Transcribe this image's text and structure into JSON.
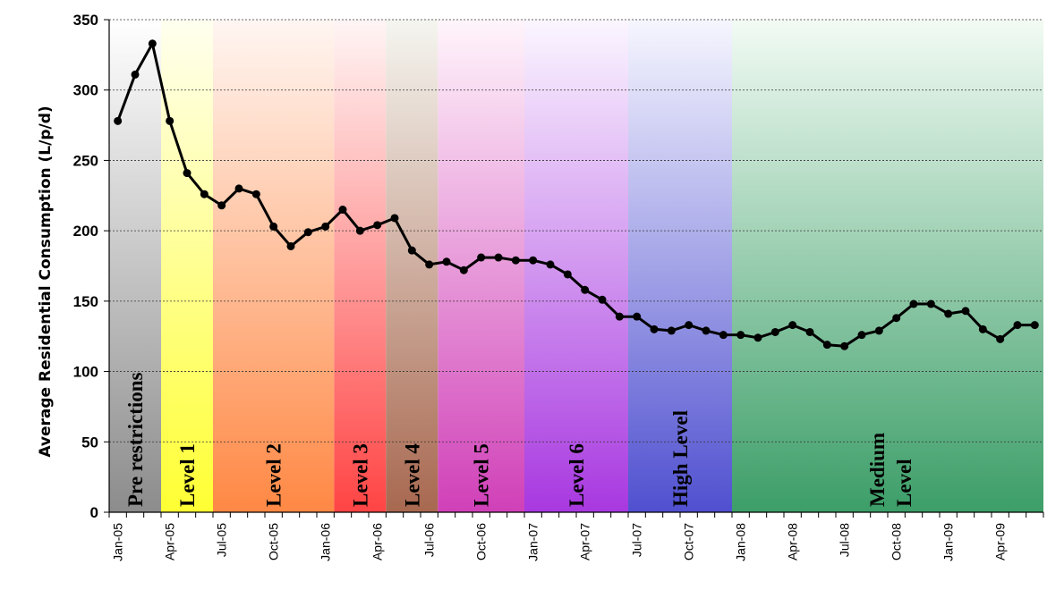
{
  "chart_data": {
    "type": "line",
    "xlabel": "",
    "ylabel": "Average Residential Consumption (L/p/d)",
    "ylim": [
      0,
      350
    ],
    "yticks": [
      0,
      50,
      100,
      150,
      200,
      250,
      300,
      350
    ],
    "grid": true,
    "x_tick_labels": [
      "Jan-05",
      "Apr-05",
      "Jul-05",
      "Oct-05",
      "Jan-06",
      "Apr-06",
      "Jul-06",
      "Oct-06",
      "Jan-07",
      "Apr-07",
      "Jul-07",
      "Oct-07",
      "Jan-08",
      "Apr-08",
      "Jul-08",
      "Oct-08",
      "Jan-09",
      "Apr-09"
    ],
    "months": [
      "Jan-05",
      "Feb-05",
      "Mar-05",
      "Apr-05",
      "May-05",
      "Jun-05",
      "Jul-05",
      "Aug-05",
      "Sep-05",
      "Oct-05",
      "Nov-05",
      "Dec-05",
      "Jan-06",
      "Feb-06",
      "Mar-06",
      "Apr-06",
      "May-06",
      "Jun-06",
      "Jul-06",
      "Aug-06",
      "Sep-06",
      "Oct-06",
      "Nov-06",
      "Dec-06",
      "Jan-07",
      "Feb-07",
      "Mar-07",
      "Apr-07",
      "May-07",
      "Jun-07",
      "Jul-07",
      "Aug-07",
      "Sep-07",
      "Oct-07",
      "Nov-07",
      "Dec-07",
      "Jan-08",
      "Feb-08",
      "Mar-08",
      "Apr-08",
      "May-08",
      "Jun-08",
      "Jul-08",
      "Aug-08",
      "Sep-08",
      "Oct-08",
      "Nov-08",
      "Dec-08",
      "Jan-09",
      "Feb-09",
      "Mar-09",
      "Apr-09",
      "May-09",
      "Jun-09"
    ],
    "values": [
      278,
      311,
      333,
      278,
      241,
      226,
      218,
      230,
      226,
      203,
      189,
      199,
      203,
      215,
      200,
      204,
      209,
      186,
      176,
      178,
      172,
      181,
      181,
      179,
      179,
      176,
      169,
      158,
      151,
      139,
      139,
      130,
      129,
      133,
      129,
      126,
      126,
      124,
      128,
      133,
      128,
      119,
      118,
      126,
      129,
      138,
      148,
      148,
      141,
      143,
      130,
      123,
      133,
      133
    ],
    "restriction_periods": [
      {
        "label": "Pre restrictions",
        "start": "Jan-05",
        "end": "Mar-05",
        "top_color": "#ffffff",
        "bottom_color": "#8c8c8c"
      },
      {
        "label": "Level 1",
        "start": "Apr-05",
        "end": "Jun-05",
        "top_color": "#fffff0",
        "bottom_color": "#ffff33"
      },
      {
        "label": "Level 2",
        "start": "Jul-05",
        "end": "Jan-06",
        "top_color": "#fff6f2",
        "bottom_color": "#ff8844"
      },
      {
        "label": "Level 3",
        "start": "Feb-06",
        "end": "Apr-06",
        "top_color": "#fff5f5",
        "bottom_color": "#ff4444"
      },
      {
        "label": "Level 4",
        "start": "May-06",
        "end": "Jul-06",
        "top_color": "#f5f5f0",
        "bottom_color": "#a86850"
      },
      {
        "label": "Level 5",
        "start": "Aug-06",
        "end": "Dec-06",
        "top_color": "#fff5fb",
        "bottom_color": "#d040b8"
      },
      {
        "label": "Level 6",
        "start": "Jan-07",
        "end": "Jun-07",
        "top_color": "#fbf6ff",
        "bottom_color": "#a838e0"
      },
      {
        "label": "High Level",
        "start": "Jul-07",
        "end": "Dec-07",
        "top_color": "#f6f6ff",
        "bottom_color": "#5050d0"
      },
      {
        "label": "Medium Level",
        "start": "Jan-08",
        "end": "Jun-09",
        "top_color": "#f2fbf4",
        "bottom_color": "#3c9e68"
      }
    ],
    "line_color": "#000000"
  }
}
